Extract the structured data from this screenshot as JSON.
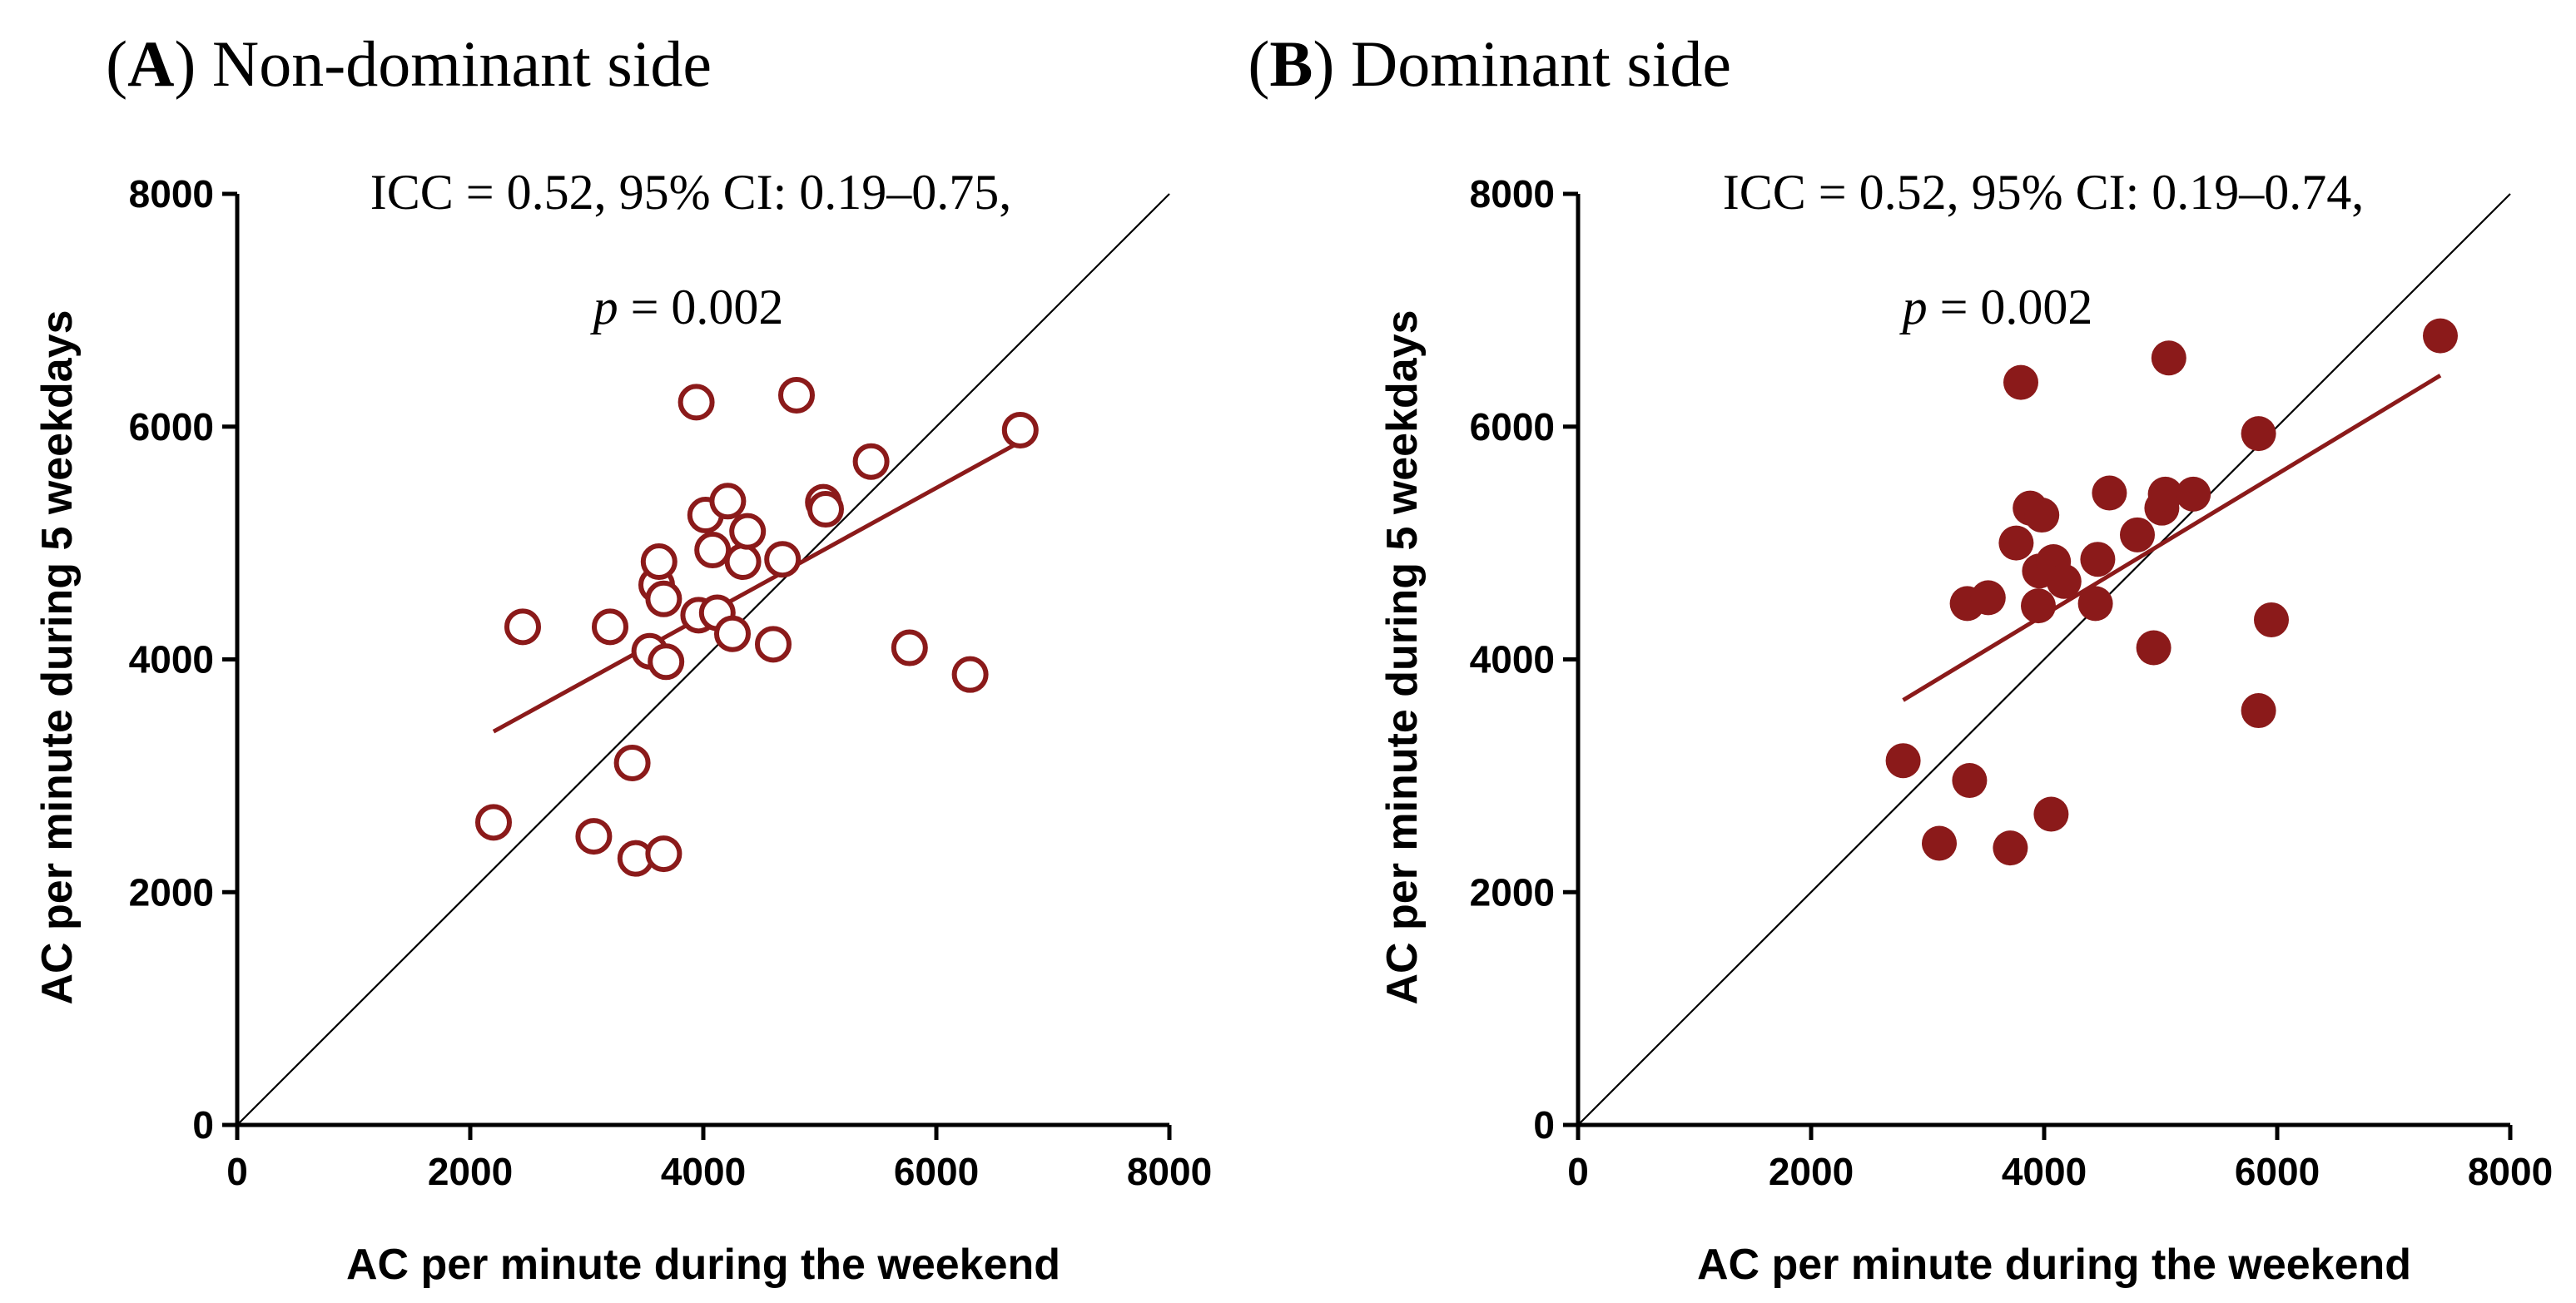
{
  "chart_data": [
    {
      "type": "scatter",
      "panel_label": "A",
      "title": "Non-dominant side",
      "stat_line1": "ICC = 0.52, 95% CI: 0.19–0.75,",
      "stat_p_symbol": "p",
      "stat_p_value": " = 0.002",
      "xlabel": "AC per minute during the weekend",
      "ylabel": "AC per minute during 5 weekdays",
      "xlim": [
        0,
        8000
      ],
      "ylim": [
        0,
        8000
      ],
      "xticks": [
        "0",
        "2000",
        "4000",
        "6000",
        "8000"
      ],
      "yticks": [
        "0",
        "2000",
        "4000",
        "6000",
        "8000"
      ],
      "marker": "open-circle",
      "color": "#8b1a1a",
      "identity_line": true,
      "regression_line": [
        [
          2200,
          3380
        ],
        [
          6720,
          5870
        ]
      ],
      "points": [
        [
          2200,
          2600
        ],
        [
          2450,
          4280
        ],
        [
          3060,
          2480
        ],
        [
          3200,
          4280
        ],
        [
          3390,
          3110
        ],
        [
          3420,
          2290
        ],
        [
          3540,
          4070
        ],
        [
          3600,
          4640
        ],
        [
          3620,
          4840
        ],
        [
          3660,
          2330
        ],
        [
          3660,
          4520
        ],
        [
          3680,
          3980
        ],
        [
          3940,
          6210
        ],
        [
          3960,
          4380
        ],
        [
          4020,
          5240
        ],
        [
          4080,
          4940
        ],
        [
          4120,
          4400
        ],
        [
          4210,
          5360
        ],
        [
          4250,
          4220
        ],
        [
          4340,
          4840
        ],
        [
          4380,
          5100
        ],
        [
          4600,
          4130
        ],
        [
          4680,
          4860
        ],
        [
          4800,
          6270
        ],
        [
          5030,
          5350
        ],
        [
          5050,
          5290
        ],
        [
          5440,
          5700
        ],
        [
          5770,
          4100
        ],
        [
          6290,
          3870
        ],
        [
          6720,
          5970
        ]
      ]
    },
    {
      "type": "scatter",
      "panel_label": "B",
      "title": "Dominant side",
      "stat_line1": "ICC = 0.52, 95% CI: 0.19–0.74,",
      "stat_p_symbol": "p",
      "stat_p_value": " = 0.002",
      "xlabel": "AC per minute during the weekend",
      "ylabel": "AC per minute during 5 weekdays",
      "xlim": [
        0,
        8000
      ],
      "ylim": [
        0,
        8000
      ],
      "xticks": [
        "0",
        "2000",
        "4000",
        "6000",
        "8000"
      ],
      "yticks": [
        "0",
        "2000",
        "4000",
        "6000",
        "8000"
      ],
      "marker": "filled-circle",
      "color": "#8b1a1a",
      "identity_line": true,
      "regression_line": [
        [
          2790,
          3650
        ],
        [
          7400,
          6440
        ]
      ],
      "points": [
        [
          2790,
          3130
        ],
        [
          3100,
          2420
        ],
        [
          3340,
          4480
        ],
        [
          3360,
          2960
        ],
        [
          3520,
          4530
        ],
        [
          3710,
          2380
        ],
        [
          3760,
          5000
        ],
        [
          3800,
          6380
        ],
        [
          3880,
          5300
        ],
        [
          3950,
          4460
        ],
        [
          3960,
          4760
        ],
        [
          3980,
          5240
        ],
        [
          4060,
          2670
        ],
        [
          4080,
          4840
        ],
        [
          4170,
          4670
        ],
        [
          4440,
          4480
        ],
        [
          4460,
          4860
        ],
        [
          4560,
          5430
        ],
        [
          4800,
          5070
        ],
        [
          4940,
          4100
        ],
        [
          5010,
          5300
        ],
        [
          5040,
          5420
        ],
        [
          5070,
          6590
        ],
        [
          5280,
          5420
        ],
        [
          5840,
          3560
        ],
        [
          5840,
          5940
        ],
        [
          5950,
          4340
        ],
        [
          7400,
          6780
        ]
      ]
    }
  ]
}
